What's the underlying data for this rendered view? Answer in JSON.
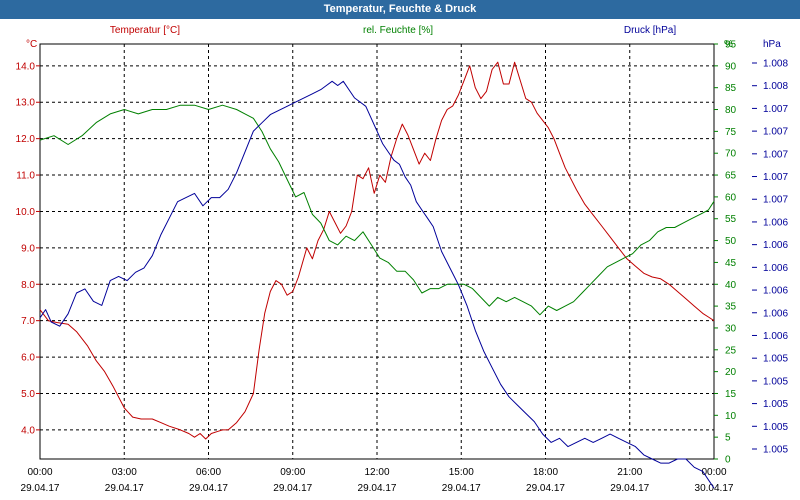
{
  "window": {
    "title": "Temperatur, Feuchte & Druck"
  },
  "chart_data": {
    "type": "line",
    "title": "",
    "legend": "top",
    "grid": true,
    "colors": {
      "temperature": "#c00000",
      "humidity": "#008000",
      "pressure": "#000099"
    },
    "x_ticks": [
      {
        "time": "00:00",
        "date": "29.04.17"
      },
      {
        "time": "03:00",
        "date": "29.04.17"
      },
      {
        "time": "06:00",
        "date": "29.04.17"
      },
      {
        "time": "09:00",
        "date": "29.04.17"
      },
      {
        "time": "12:00",
        "date": "29.04.17"
      },
      {
        "time": "15:00",
        "date": "29.04.17"
      },
      {
        "time": "18:00",
        "date": "29.04.17"
      },
      {
        "time": "21:00",
        "date": "29.04.17"
      },
      {
        "time": "00:00",
        "date": "30.04.17"
      }
    ],
    "xlim_hours": [
      0,
      24
    ],
    "axes": {
      "temperature": {
        "label": "Temperatur [°C]",
        "unit": "°C",
        "ylim": [
          3.2,
          14.6
        ],
        "ticks": [
          "4.0",
          "5.0",
          "6.0",
          "7.0",
          "8.0",
          "9.0",
          "10.0",
          "11.0",
          "12.0",
          "13.0",
          "14.0"
        ]
      },
      "humidity": {
        "label": "rel. Feuchte [%]",
        "unit": "%",
        "ylim": [
          0,
          95
        ],
        "ticks": [
          "0",
          "5",
          "10",
          "15",
          "20",
          "25",
          "30",
          "35",
          "40",
          "45",
          "50",
          "55",
          "60",
          "65",
          "70",
          "75",
          "80",
          "85",
          "90",
          "95"
        ]
      },
      "pressure": {
        "label": "Druck [hPa]",
        "unit": "hPa",
        "ylim": [
          0,
          100
        ],
        "ticks": [
          "1.005",
          "1.005",
          "1.005",
          "1.005",
          "1.005",
          "1.006",
          "1.006",
          "1.006",
          "1.006",
          "1.006",
          "1.006",
          "1.007",
          "1.007",
          "1.007",
          "1.007",
          "1.007",
          "1.008",
          "1.008"
        ]
      }
    },
    "series": [
      {
        "name": "Temperatur [°C]",
        "axis": "temperature",
        "x": [
          0,
          0.3,
          0.6,
          1,
          1.3,
          1.7,
          2,
          2.3,
          2.6,
          3,
          3.3,
          3.6,
          4,
          4.3,
          4.6,
          5,
          5.3,
          5.5,
          5.7,
          5.9,
          6.1,
          6.3,
          6.5,
          6.7,
          7,
          7.3,
          7.6,
          7.8,
          8,
          8.2,
          8.4,
          8.6,
          8.8,
          9,
          9.2,
          9.5,
          9.7,
          9.9,
          10.1,
          10.3,
          10.5,
          10.7,
          10.9,
          11.1,
          11.3,
          11.5,
          11.7,
          11.9,
          12.1,
          12.3,
          12.5,
          12.7,
          12.9,
          13.1,
          13.3,
          13.5,
          13.7,
          13.9,
          14.1,
          14.3,
          14.5,
          14.7,
          14.9,
          15.1,
          15.3,
          15.5,
          15.7,
          15.9,
          16.1,
          16.3,
          16.5,
          16.7,
          16.9,
          17.1,
          17.3,
          17.5,
          17.7,
          17.9,
          18.1,
          18.3,
          18.5,
          18.7,
          18.9,
          19.1,
          19.4,
          19.7,
          20,
          20.3,
          20.6,
          20.9,
          21.2,
          21.5,
          21.8,
          22.1,
          22.4,
          22.7,
          23,
          23.3,
          23.6,
          23.8,
          24
        ],
        "values": [
          7.3,
          7.0,
          6.95,
          6.9,
          6.7,
          6.3,
          5.9,
          5.6,
          5.2,
          4.6,
          4.35,
          4.3,
          4.3,
          4.2,
          4.1,
          4.0,
          3.9,
          3.8,
          3.9,
          3.75,
          3.9,
          3.95,
          4.0,
          4.0,
          4.2,
          4.5,
          5.0,
          6.2,
          7.2,
          7.8,
          8.1,
          8.0,
          7.7,
          7.8,
          8.2,
          9.0,
          8.7,
          9.2,
          9.5,
          10.0,
          9.7,
          9.4,
          9.6,
          10.0,
          11.0,
          10.9,
          11.2,
          10.5,
          11.0,
          10.8,
          11.5,
          12.0,
          12.4,
          12.1,
          11.7,
          11.3,
          11.6,
          11.4,
          12.0,
          12.5,
          12.8,
          12.9,
          13.2,
          13.6,
          14.0,
          13.4,
          13.1,
          13.3,
          13.9,
          14.1,
          13.5,
          13.5,
          14.1,
          13.6,
          13.1,
          13.0,
          12.7,
          12.5,
          12.3,
          12.0,
          11.6,
          11.2,
          10.9,
          10.6,
          10.2,
          9.9,
          9.6,
          9.3,
          9.0,
          8.7,
          8.5,
          8.3,
          8.2,
          8.15,
          8.0,
          7.8,
          7.6,
          7.4,
          7.2,
          7.1,
          7.0
        ]
      },
      {
        "name": "rel. Feuchte [%]",
        "axis": "humidity",
        "x": [
          0,
          0.5,
          1,
          1.5,
          2,
          2.5,
          3,
          3.5,
          4,
          4.5,
          5,
          5.5,
          6,
          6.5,
          7,
          7.3,
          7.6,
          7.9,
          8.2,
          8.5,
          8.8,
          9.1,
          9.4,
          9.7,
          10,
          10.3,
          10.6,
          10.9,
          11.2,
          11.5,
          11.8,
          12.1,
          12.4,
          12.7,
          13,
          13.3,
          13.6,
          13.9,
          14.2,
          14.5,
          14.8,
          15.1,
          15.4,
          15.7,
          16,
          16.3,
          16.6,
          16.9,
          17.2,
          17.5,
          17.8,
          18.1,
          18.4,
          18.7,
          19,
          19.3,
          19.6,
          19.9,
          20.2,
          20.5,
          20.8,
          21.1,
          21.4,
          21.7,
          22,
          22.3,
          22.6,
          22.9,
          23.2,
          23.5,
          23.8,
          24
        ],
        "values": [
          73,
          74,
          72,
          74,
          77,
          79,
          80,
          79,
          80,
          80,
          81,
          81,
          80,
          81,
          80,
          79,
          78,
          75,
          71,
          68,
          64,
          60,
          61,
          56,
          54,
          50,
          49,
          51,
          50,
          52,
          49,
          46,
          45,
          43,
          43,
          41,
          38,
          39,
          39,
          40,
          40,
          40,
          39,
          37,
          35,
          37,
          36,
          37,
          36,
          35,
          33,
          35,
          34,
          35,
          36,
          38,
          40,
          42,
          44,
          45,
          46,
          47,
          49,
          50,
          52,
          53,
          53,
          54,
          55,
          56,
          57,
          59
        ]
      },
      {
        "name": "Druck [hPa]",
        "axis": "pressure",
        "x": [
          0,
          0.2,
          0.4,
          0.7,
          1,
          1.3,
          1.6,
          1.9,
          2.2,
          2.5,
          2.8,
          3.1,
          3.4,
          3.7,
          4,
          4.3,
          4.6,
          4.9,
          5.2,
          5.5,
          5.8,
          6.1,
          6.4,
          6.7,
          7,
          7.3,
          7.6,
          7.9,
          8.2,
          8.5,
          8.8,
          9.1,
          9.4,
          9.7,
          10,
          10.2,
          10.4,
          10.6,
          10.8,
          11,
          11.2,
          11.4,
          11.6,
          11.8,
          12,
          12.2,
          12.4,
          12.6,
          12.8,
          13,
          13.2,
          13.4,
          13.6,
          13.8,
          14,
          14.3,
          14.6,
          14.9,
          15.2,
          15.5,
          15.8,
          16.1,
          16.4,
          16.7,
          17,
          17.3,
          17.6,
          17.9,
          18.2,
          18.5,
          18.8,
          19.1,
          19.4,
          19.7,
          20,
          20.3,
          20.6,
          20.9,
          21.2,
          21.5,
          21.8,
          22.1,
          22.4,
          22.7,
          23,
          23.3,
          23.6,
          23.8,
          24
        ],
        "values": [
          34,
          36,
          33,
          32,
          35,
          40,
          41,
          38,
          37,
          43,
          44,
          43,
          45,
          46,
          49,
          54,
          58,
          62,
          63,
          64,
          61,
          63,
          63,
          65,
          69,
          74,
          79,
          81,
          83,
          84,
          85,
          86,
          87,
          88,
          89,
          90,
          91,
          90,
          91,
          89,
          87,
          86,
          85,
          82,
          79,
          76,
          74,
          72,
          71,
          68,
          66,
          62,
          60,
          58,
          56,
          50,
          46,
          42,
          37,
          31,
          26,
          22,
          18,
          15,
          13,
          11,
          9,
          6,
          4,
          5,
          3,
          4,
          5,
          4,
          5,
          6,
          5,
          4,
          3,
          1,
          0,
          -1,
          -1,
          0,
          0,
          -2,
          -3,
          -5,
          -7
        ]
      }
    ]
  }
}
